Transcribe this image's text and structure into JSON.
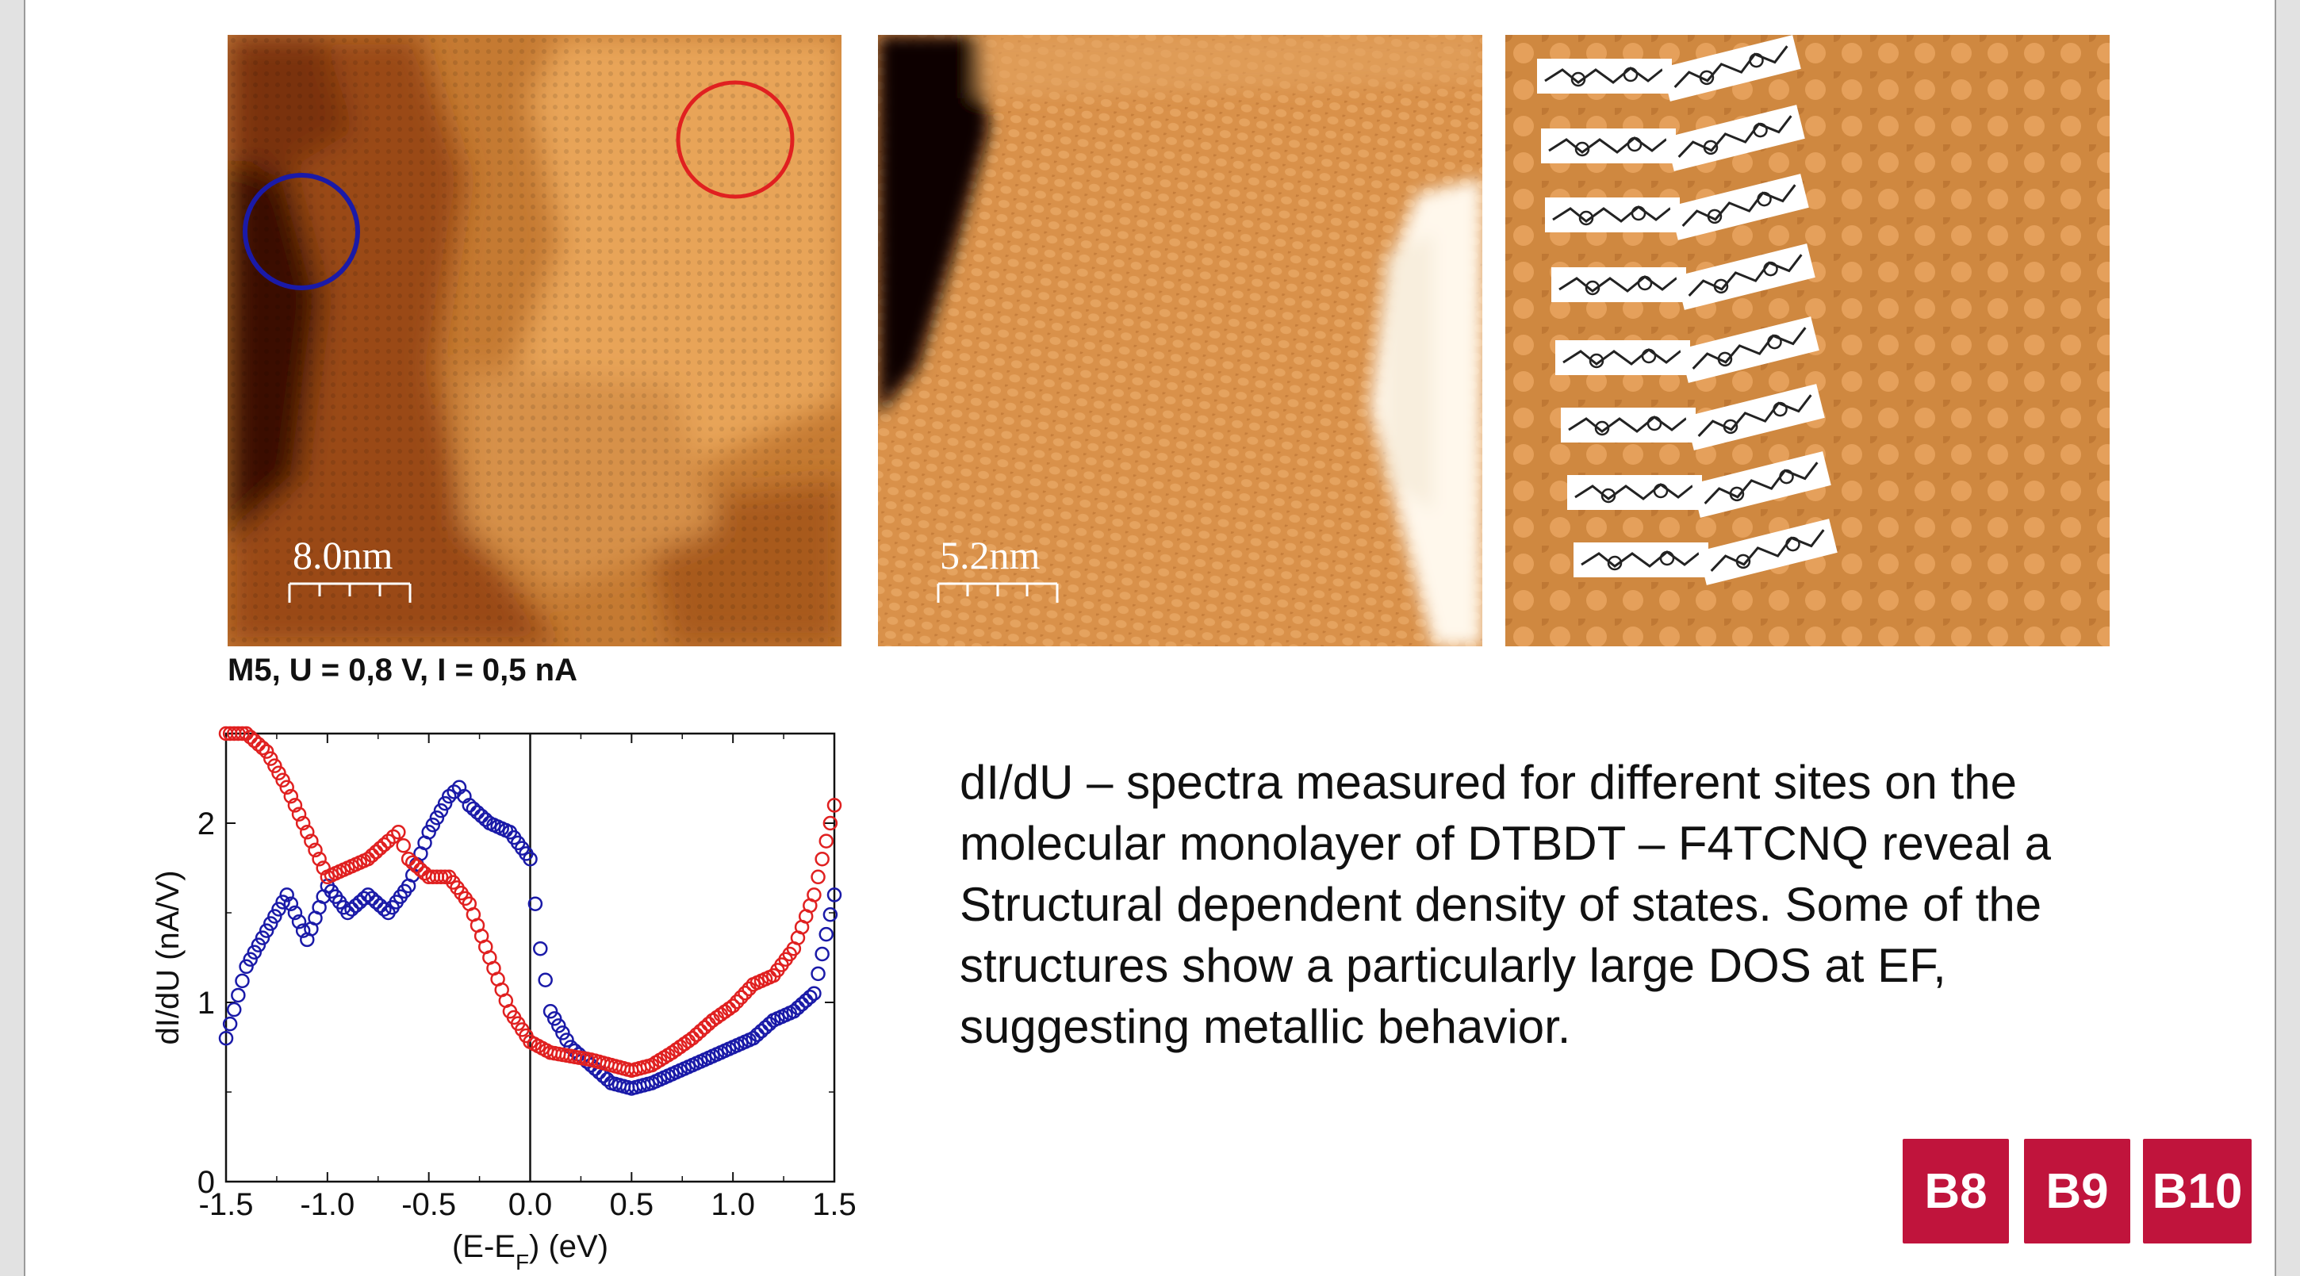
{
  "images": [
    {
      "scale_label": "8.0nm"
    },
    {
      "scale_label": "5.2nm"
    },
    {
      "scale_label": ""
    }
  ],
  "measurement_params": "M5, U = 0,8 V, I = 0,5 nA",
  "description_lines": [
    "dI/dU – spectra measured for different sites on the",
    "molecular monolayer of DTBDT – F4TCNQ reveal a",
    "Structural dependent density of states. Some of the",
    "structures show a particularly large DOS at EF,",
    "suggesting metallic behavior."
  ],
  "badges": [
    "B8",
    "B9",
    "B10"
  ],
  "colors": {
    "badge": "#c0143c",
    "blue_site": "#1a1aa8",
    "red_site": "#e02020"
  },
  "chart_data": {
    "type": "scatter",
    "xlabel": "(E-E",
    "xlabel_sub": "F",
    "xlabel_unit": ") (eV)",
    "ylabel": "dI/dU (nA/V)",
    "xlim": [
      -1.5,
      1.5
    ],
    "ylim": [
      0,
      2.5
    ],
    "xticks": [
      "-1.5",
      "-1.0",
      "-0.5",
      "0.0",
      "0.5",
      "1.0",
      "1.5"
    ],
    "yticks": [
      "0",
      "1",
      "2"
    ],
    "vline_x": 0,
    "series": [
      {
        "color": "#1a1aa8",
        "x": [
          -1.5,
          -1.4,
          -1.3,
          -1.2,
          -1.1,
          -1.0,
          -0.9,
          -0.8,
          -0.7,
          -0.6,
          -0.5,
          -0.4,
          -0.35,
          -0.3,
          -0.2,
          -0.1,
          0.0,
          0.05,
          0.1,
          0.2,
          0.3,
          0.4,
          0.5,
          0.6,
          0.7,
          0.8,
          0.9,
          1.0,
          1.1,
          1.2,
          1.3,
          1.4,
          1.5
        ],
        "y": [
          0.8,
          1.2,
          1.4,
          1.6,
          1.35,
          1.65,
          1.5,
          1.6,
          1.5,
          1.65,
          1.95,
          2.15,
          2.2,
          2.1,
          2.0,
          1.95,
          1.8,
          1.3,
          0.95,
          0.75,
          0.65,
          0.55,
          0.52,
          0.55,
          0.6,
          0.65,
          0.7,
          0.75,
          0.8,
          0.9,
          0.95,
          1.05,
          1.6
        ]
      },
      {
        "color": "#e02020",
        "x": [
          -1.5,
          -1.4,
          -1.3,
          -1.2,
          -1.1,
          -1.0,
          -0.9,
          -0.8,
          -0.7,
          -0.65,
          -0.6,
          -0.5,
          -0.4,
          -0.3,
          -0.2,
          -0.1,
          0.0,
          0.1,
          0.2,
          0.3,
          0.4,
          0.5,
          0.6,
          0.7,
          0.8,
          0.9,
          1.0,
          1.1,
          1.2,
          1.3,
          1.4,
          1.5
        ],
        "y": [
          2.5,
          2.5,
          2.4,
          2.2,
          1.95,
          1.7,
          1.75,
          1.8,
          1.9,
          1.95,
          1.8,
          1.7,
          1.7,
          1.55,
          1.25,
          0.95,
          0.78,
          0.72,
          0.7,
          0.68,
          0.65,
          0.62,
          0.65,
          0.72,
          0.8,
          0.9,
          0.98,
          1.1,
          1.15,
          1.3,
          1.6,
          2.1
        ]
      }
    ]
  }
}
